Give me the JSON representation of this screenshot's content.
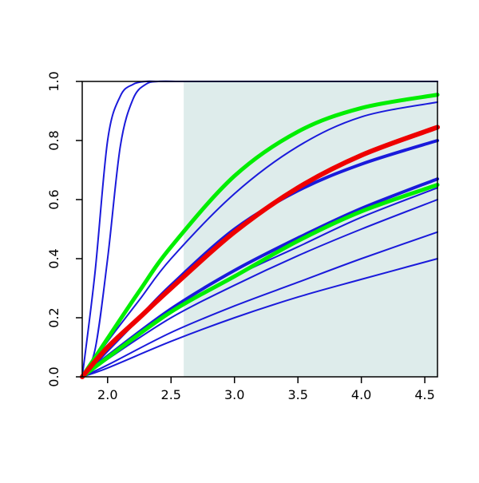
{
  "chart_data": {
    "type": "line",
    "title": "",
    "xlabel": "",
    "ylabel": "",
    "xlim": [
      1.8,
      4.6
    ],
    "ylim": [
      0,
      1
    ],
    "x_ticks": [
      "2.0",
      "2.5",
      "3.0",
      "3.5",
      "4.0",
      "4.5"
    ],
    "y_ticks": [
      "0.0",
      "0.2",
      "0.4",
      "0.6",
      "0.8",
      "1.0"
    ],
    "shaded_region": {
      "x_from": 2.6,
      "x_to": 4.6,
      "color": "#deeceb"
    },
    "grid": false,
    "legend": "none",
    "series": [
      {
        "color": "#1a1adb",
        "width": 2,
        "x": [
          1.8,
          1.9,
          2.0,
          2.1,
          2.2,
          2.3,
          2.4,
          2.6,
          3.0,
          4.6
        ],
        "values": [
          0.0,
          0.35,
          0.8,
          0.95,
          0.99,
          1.0,
          1.0,
          1.0,
          1.0,
          1.0
        ]
      },
      {
        "color": "#1a1adb",
        "width": 2,
        "x": [
          1.8,
          1.9,
          2.0,
          2.1,
          2.2,
          2.3,
          2.4,
          2.6,
          3.0,
          4.6
        ],
        "values": [
          0.0,
          0.09,
          0.4,
          0.78,
          0.94,
          0.99,
          1.0,
          1.0,
          1.0,
          1.0
        ]
      },
      {
        "color": "#1a1adb",
        "width": 2,
        "x": [
          1.8,
          2.0,
          2.25,
          2.5,
          3.0,
          3.5,
          4.0,
          4.6
        ],
        "values": [
          0.0,
          0.12,
          0.26,
          0.4,
          0.62,
          0.78,
          0.88,
          0.93
        ]
      },
      {
        "color": "#1a1adb",
        "width": 4,
        "x": [
          1.8,
          2.0,
          2.25,
          2.5,
          3.0,
          3.5,
          4.0,
          4.6
        ],
        "values": [
          0.0,
          0.09,
          0.2,
          0.31,
          0.5,
          0.63,
          0.72,
          0.8
        ]
      },
      {
        "color": "#1a1adb",
        "width": 4,
        "x": [
          1.8,
          2.0,
          2.5,
          3.0,
          3.5,
          4.0,
          4.6
        ],
        "values": [
          0.0,
          0.07,
          0.23,
          0.36,
          0.47,
          0.57,
          0.67
        ]
      },
      {
        "color": "#1a1adb",
        "width": 2,
        "x": [
          1.8,
          2.0,
          2.5,
          3.0,
          3.5,
          4.0,
          4.6
        ],
        "values": [
          0.0,
          0.06,
          0.22,
          0.34,
          0.44,
          0.54,
          0.64
        ]
      },
      {
        "color": "#1a1adb",
        "width": 2,
        "x": [
          1.8,
          2.0,
          2.5,
          3.0,
          3.5,
          4.0,
          4.6
        ],
        "values": [
          0.0,
          0.06,
          0.2,
          0.31,
          0.41,
          0.5,
          0.6
        ]
      },
      {
        "color": "#1a1adb",
        "width": 2,
        "x": [
          1.8,
          2.0,
          2.5,
          3.0,
          3.5,
          4.0,
          4.6
        ],
        "values": [
          0.0,
          0.04,
          0.15,
          0.24,
          0.32,
          0.4,
          0.49
        ]
      },
      {
        "color": "#1a1adb",
        "width": 2,
        "x": [
          1.8,
          2.0,
          2.5,
          3.0,
          3.5,
          4.0,
          4.6
        ],
        "values": [
          0.0,
          0.03,
          0.12,
          0.2,
          0.27,
          0.33,
          0.4
        ]
      },
      {
        "color": "#00ee00",
        "width": 5,
        "x": [
          1.8,
          2.0,
          2.25,
          2.5,
          3.0,
          3.5,
          4.0,
          4.6
        ],
        "values": [
          0.0,
          0.13,
          0.29,
          0.44,
          0.68,
          0.83,
          0.91,
          0.955
        ]
      },
      {
        "color": "#00ee00",
        "width": 5,
        "x": [
          1.8,
          2.0,
          2.5,
          3.0,
          3.5,
          4.0,
          4.6
        ],
        "values": [
          0.0,
          0.065,
          0.22,
          0.34,
          0.46,
          0.56,
          0.65
        ]
      },
      {
        "color": "#ee0000",
        "width": 6,
        "x": [
          1.8,
          2.0,
          2.25,
          2.5,
          3.0,
          3.5,
          4.0,
          4.6
        ],
        "values": [
          0.0,
          0.1,
          0.2,
          0.3,
          0.49,
          0.64,
          0.75,
          0.845
        ]
      }
    ]
  }
}
